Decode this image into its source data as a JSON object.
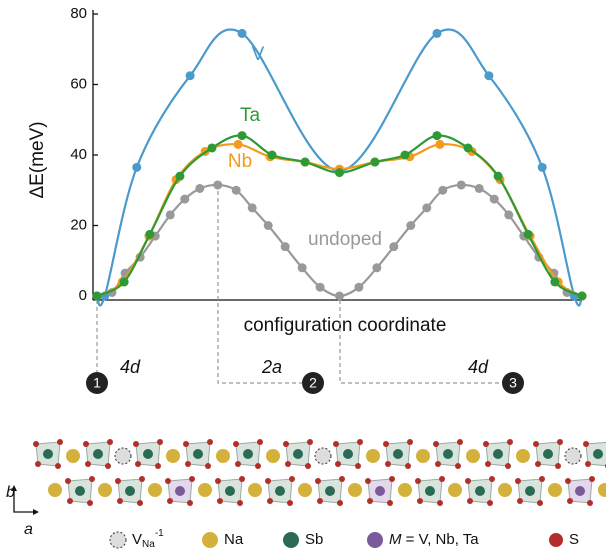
{
  "chart_data": {
    "type": "line",
    "ylabel": "ΔE(meV)",
    "xlabel": "configuration coordinate",
    "xlim": [
      0,
      100
    ],
    "ylim": [
      0,
      80
    ],
    "yticks": [
      0,
      20,
      40,
      60,
      80
    ],
    "series": [
      {
        "name": "V",
        "color": "#4a9acb",
        "x": [
          0,
          1.6,
          8.2,
          19.2,
          29.9,
          50,
          70.1,
          80.8,
          91.8,
          98.4,
          100
        ],
        "values": [
          0,
          0,
          36.5,
          62.5,
          74.5,
          35.5,
          74.5,
          62.5,
          36.5,
          0,
          0
        ]
      },
      {
        "name": "Ta",
        "color": "#2e9a35",
        "x": [
          0,
          5.6,
          10.9,
          17.1,
          23.7,
          29.9,
          36.1,
          42.9,
          50,
          57.3,
          63.5,
          70.1,
          76.5,
          82.7,
          88.9,
          94.4,
          100
        ],
        "values": [
          0,
          4,
          17.5,
          34,
          42,
          45.5,
          40,
          38,
          35,
          38,
          40,
          45.5,
          42,
          34,
          17.5,
          4,
          0
        ]
      },
      {
        "name": "Nb",
        "color": "#f39a1d",
        "x": [
          0,
          5.2,
          10.7,
          16.3,
          22.3,
          29.1,
          35.7,
          42.9,
          50,
          57.3,
          64.5,
          70.7,
          77.3,
          83.1,
          89.3,
          95.1,
          100
        ],
        "values": [
          0,
          4,
          17,
          33,
          41,
          43,
          39.5,
          38,
          36,
          38,
          39.5,
          43,
          41,
          33,
          17,
          4,
          0
        ]
      },
      {
        "name": "undoped",
        "color": "#999999",
        "x": [
          0,
          3.1,
          5.8,
          8.9,
          12,
          15.1,
          18.1,
          21.2,
          24.9,
          28.7,
          32,
          35.3,
          38.8,
          42.3,
          46,
          50,
          54,
          57.7,
          61.2,
          64.7,
          68,
          71.3,
          75.1,
          78.8,
          81.9,
          84.9,
          88,
          91.1,
          94.2,
          96.9,
          100
        ],
        "values": [
          0,
          1,
          6.5,
          11,
          17,
          23,
          27.5,
          30.5,
          31.5,
          30,
          25,
          20,
          14,
          8,
          2.5,
          0,
          2.5,
          8,
          14,
          20,
          25,
          30,
          31.5,
          30.5,
          27.5,
          23,
          17,
          11,
          6.5,
          1,
          0
        ]
      }
    ]
  },
  "pathway": [
    {
      "label": "4d",
      "marker": "1"
    },
    {
      "label": "2a",
      "marker": "2"
    },
    {
      "label": "4d",
      "marker": "3"
    }
  ],
  "axes": {
    "b": "b",
    "a": "a"
  },
  "structure_legend": {
    "vacancy": {
      "symbol": "V",
      "sub": "Na",
      "sup": "-1"
    },
    "na": "Na",
    "sb": "Sb",
    "m": {
      "symbol": "M",
      "rest": " = V, Nb, Ta"
    },
    "s": "S"
  }
}
